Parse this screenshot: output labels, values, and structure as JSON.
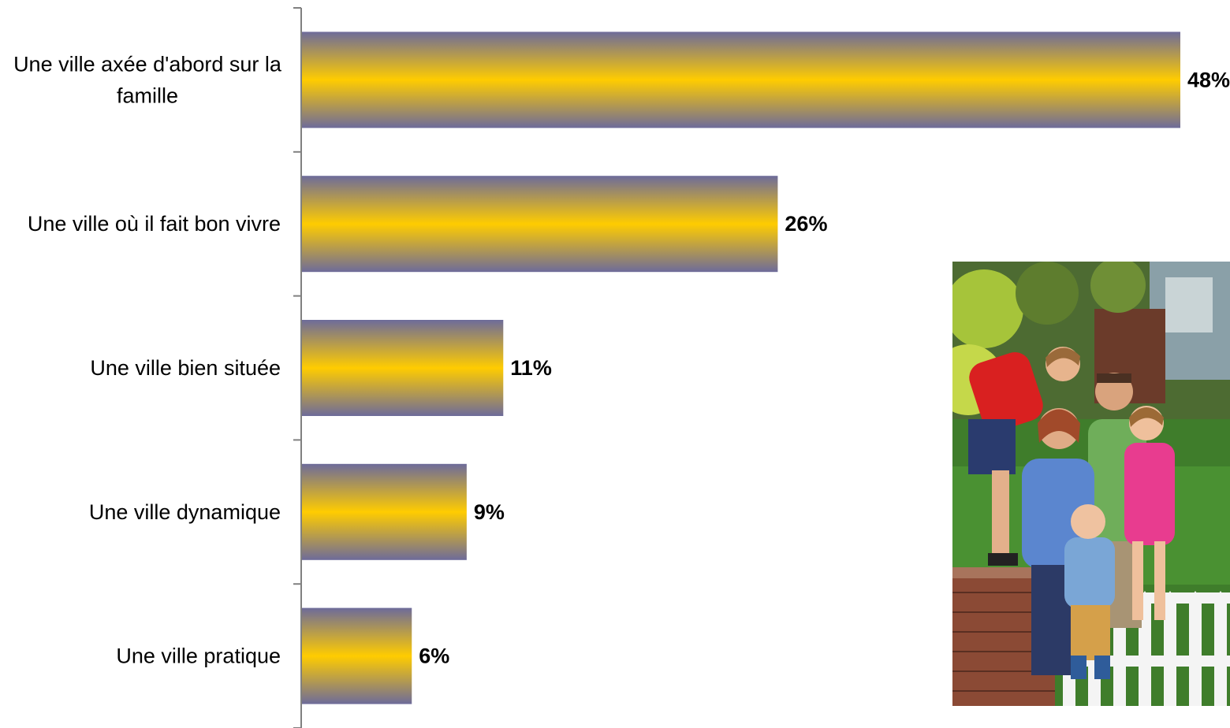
{
  "chart_data": {
    "type": "bar",
    "orientation": "horizontal",
    "categories": [
      "Une ville axée d'abord sur la famille",
      "Une ville où il fait bon vivre",
      "Une ville bien située",
      "Une ville dynamique",
      "Une ville pratique"
    ],
    "category_lines": [
      [
        "Une ville axée d'abord sur la",
        "famille"
      ],
      [
        "Une ville où il fait bon vivre"
      ],
      [
        "Une ville bien située"
      ],
      [
        "Une ville dynamique"
      ],
      [
        "Une ville pratique"
      ]
    ],
    "values": [
      48,
      26,
      11,
      9,
      6
    ],
    "value_labels": [
      "48%",
      "26%",
      "11%",
      "9%",
      "6%"
    ],
    "xlim": [
      0,
      50
    ],
    "bar_colors": {
      "edge": "#6d6b9a",
      "center": "#ffcc00"
    },
    "grid": false
  }
}
